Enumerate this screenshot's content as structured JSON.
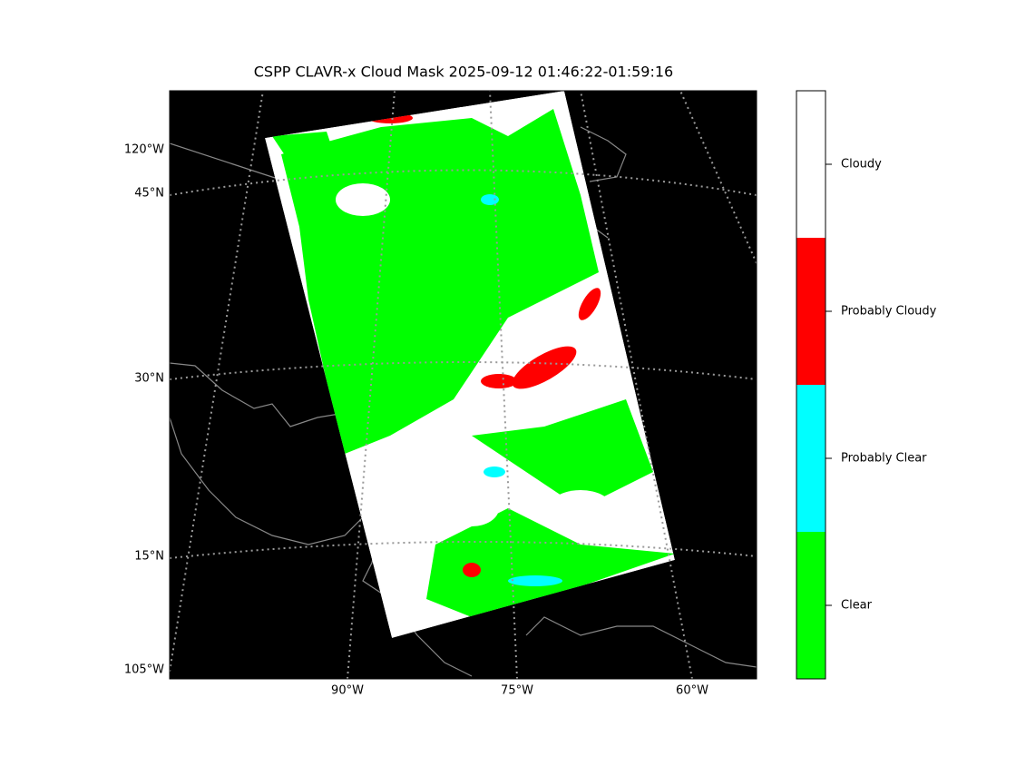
{
  "title": "CSPP CLAVR-x Cloud Mask 2025-09-12 01:46:22-01:59:16",
  "graticule_labels": {
    "left": [
      "120°W",
      "45°N",
      "30°N",
      "15°N",
      "105°W"
    ],
    "bottom": [
      "90°W",
      "75°W",
      "60°W"
    ]
  },
  "colorbar": {
    "classes": [
      {
        "label": "Cloudy",
        "color": "#ffffff"
      },
      {
        "label": "Probably Cloudy",
        "color": "#ff0000"
      },
      {
        "label": "Probably Clear",
        "color": "#00ffff"
      },
      {
        "label": "Clear",
        "color": "#00ff00"
      }
    ]
  }
}
